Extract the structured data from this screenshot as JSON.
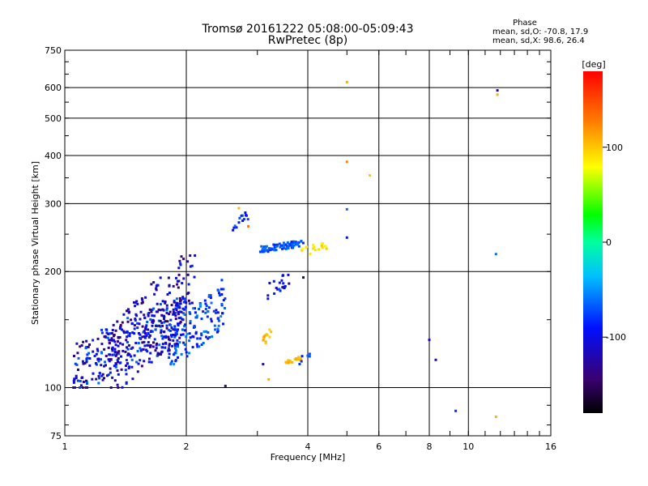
{
  "chart_data": {
    "type": "scatter",
    "title": "Tromsø 20161222 05:08:00-05:09:43",
    "subtitle": "RwPretec (8p)",
    "xlabel": "Frequency [MHz]",
    "ylabel": "Stationary phase Virtual Height [km]",
    "xscale": "log",
    "yscale": "log",
    "xlim": [
      1,
      16
    ],
    "ylim": [
      75,
      750
    ],
    "x_ticks": [
      {
        "value": 1,
        "label": "1"
      },
      {
        "value": 2,
        "label": "2"
      },
      {
        "value": 4,
        "label": "4"
      },
      {
        "value": 6,
        "label": "6"
      },
      {
        "value": 8,
        "label": "8"
      },
      {
        "value": 10,
        "label": "10"
      },
      {
        "value": 16,
        "label": "16"
      }
    ],
    "y_ticks": [
      {
        "value": 75,
        "label": "75"
      },
      {
        "value": 100,
        "label": "100"
      },
      {
        "value": 200,
        "label": "200"
      },
      {
        "value": 300,
        "label": "300"
      },
      {
        "value": 400,
        "label": "400"
      },
      {
        "value": 500,
        "label": "500"
      },
      {
        "value": 600,
        "label": "600"
      },
      {
        "value": 750,
        "label": "750"
      }
    ],
    "grid": true,
    "phase_stats": {
      "heading": "Phase",
      "line1": "mean, sd,O: -70.8, 17.9",
      "line2": "mean, sd,X:  98.6, 26.4"
    },
    "colorbar": {
      "label": "[deg]",
      "range": [
        -180,
        180
      ],
      "ticks": [
        {
          "value": 100,
          "label": "100"
        },
        {
          "value": 0,
          "label": "0"
        },
        {
          "value": -100,
          "label": "-100"
        }
      ]
    },
    "clusters": [
      {
        "x_range": [
          1.05,
          2.0
        ],
        "y_range": [
          100,
          170
        ],
        "phase": -100,
        "count": 320,
        "spread": 40
      },
      {
        "x_range": [
          1.3,
          2.1
        ],
        "y_range": [
          100,
          220
        ],
        "phase": -115,
        "count": 180,
        "spread": 35
      },
      {
        "x_range": [
          1.8,
          2.5
        ],
        "y_range": [
          115,
          180
        ],
        "phase": -75,
        "count": 130,
        "spread": 25
      },
      {
        "x_range": [
          2.6,
          2.85
        ],
        "y_range": [
          255,
          285
        ],
        "phase": -80,
        "count": 14,
        "spread": 20
      },
      {
        "x_range": [
          3.05,
          3.9
        ],
        "y_range": [
          225,
          240
        ],
        "phase": -70,
        "count": 90,
        "spread": 15
      },
      {
        "x_range": [
          3.85,
          4.5
        ],
        "y_range": [
          220,
          240
        ],
        "phase": 90,
        "count": 18,
        "spread": 15
      },
      {
        "x_range": [
          3.15,
          3.6
        ],
        "y_range": [
          170,
          200
        ],
        "phase": -105,
        "count": 20,
        "spread": 20
      },
      {
        "x_range": [
          3.1,
          3.25
        ],
        "y_range": [
          128,
          142
        ],
        "phase": 105,
        "count": 14,
        "spread": 10
      },
      {
        "x_range": [
          3.5,
          3.85
        ],
        "y_range": [
          115,
          120
        ],
        "phase": 105,
        "count": 18,
        "spread": 10
      },
      {
        "x_range": [
          3.8,
          4.05
        ],
        "y_range": [
          113,
          125
        ],
        "phase": -80,
        "count": 6,
        "spread": 15
      }
    ],
    "points": [
      {
        "x": 5.0,
        "y": 620,
        "phase": 110
      },
      {
        "x": 5.0,
        "y": 385,
        "phase": 125
      },
      {
        "x": 5.7,
        "y": 355,
        "phase": 100
      },
      {
        "x": 5.0,
        "y": 290,
        "phase": -60
      },
      {
        "x": 5.0,
        "y": 245,
        "phase": -90
      },
      {
        "x": 11.8,
        "y": 590,
        "phase": -130
      },
      {
        "x": 11.8,
        "y": 575,
        "phase": 110
      },
      {
        "x": 11.7,
        "y": 222,
        "phase": -60
      },
      {
        "x": 11.7,
        "y": 84,
        "phase": 110
      },
      {
        "x": 9.3,
        "y": 87,
        "phase": -80
      },
      {
        "x": 8.0,
        "y": 133,
        "phase": -120
      },
      {
        "x": 8.3,
        "y": 118,
        "phase": -110
      },
      {
        "x": 3.9,
        "y": 193,
        "phase": -150
      },
      {
        "x": 3.4,
        "y": 180,
        "phase": -70
      },
      {
        "x": 3.1,
        "y": 115,
        "phase": -115
      },
      {
        "x": 3.2,
        "y": 105,
        "phase": 110
      },
      {
        "x": 2.5,
        "y": 101,
        "phase": -130
      },
      {
        "x": 2.7,
        "y": 292,
        "phase": 105
      },
      {
        "x": 2.85,
        "y": 262,
        "phase": 130
      },
      {
        "x": 1.4,
        "y": 140,
        "phase": -140
      },
      {
        "x": 2.1,
        "y": 220,
        "phase": -90
      },
      {
        "x": 2.45,
        "y": 190,
        "phase": -75
      }
    ]
  }
}
